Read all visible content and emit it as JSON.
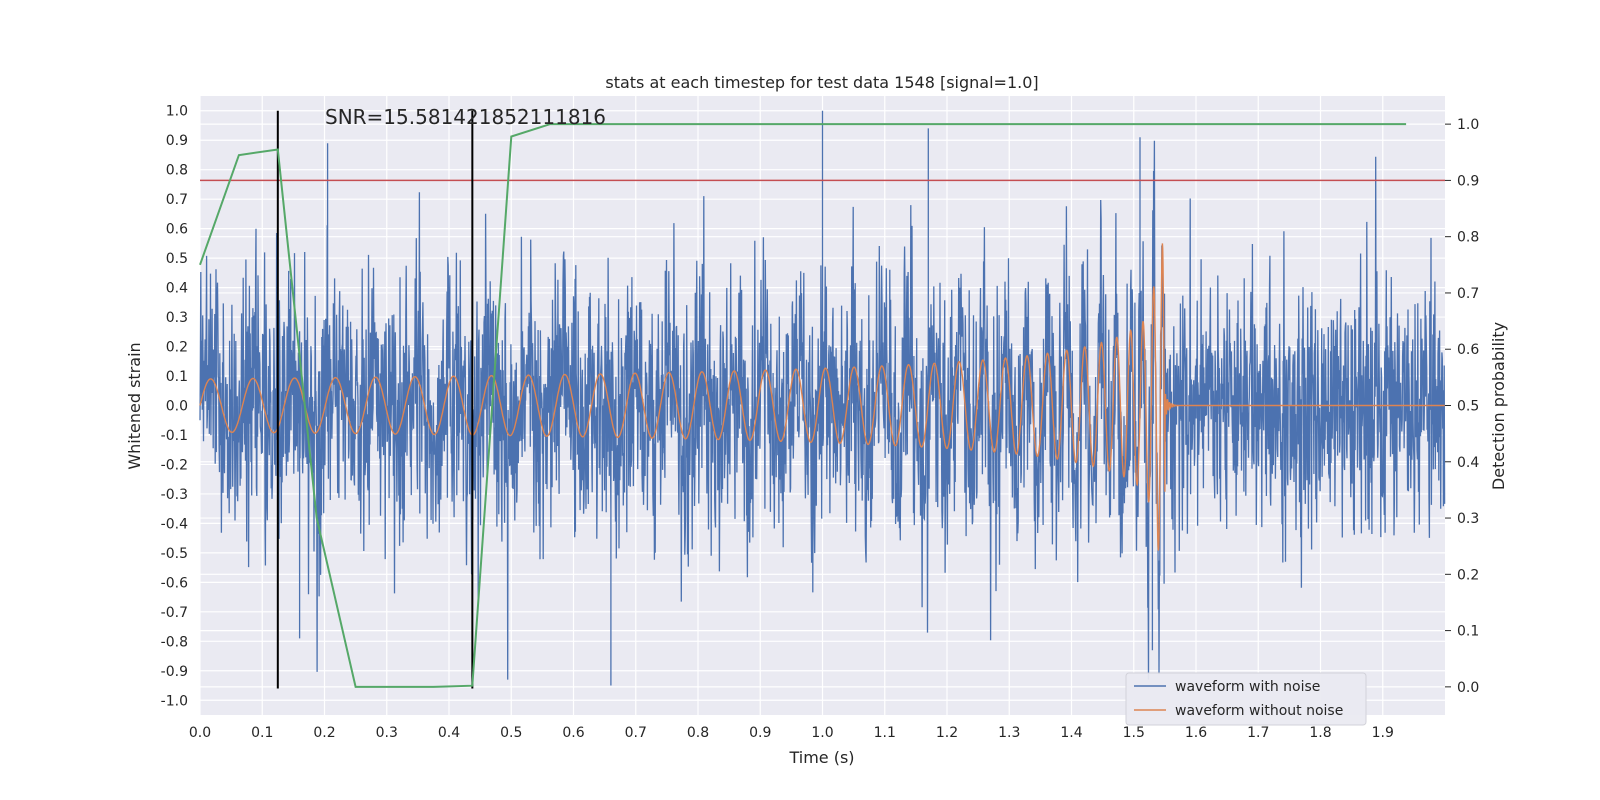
{
  "chart_data": {
    "type": "line",
    "title": "stats at each timestep for test data 1548 [signal=1.0]",
    "annotation": "SNR=15.581421852111816",
    "xlabel": "Time (s)",
    "ylabel": "Whitened strain",
    "ylabel_right": "Detection probability",
    "xlim": [
      0.0,
      2.0
    ],
    "ylim": [
      -1.05,
      1.05
    ],
    "ylim_right": [
      -0.05,
      1.05
    ],
    "x_ticks": [
      "0.0",
      "0.1",
      "0.2",
      "0.3",
      "0.4",
      "0.5",
      "0.6",
      "0.7",
      "0.8",
      "0.9",
      "1.0",
      "1.1",
      "1.2",
      "1.3",
      "1.4",
      "1.5",
      "1.6",
      "1.7",
      "1.8",
      "1.9"
    ],
    "y_ticks": [
      "1.0",
      "0.9",
      "0.8",
      "0.7",
      "0.6",
      "0.5",
      "0.4",
      "0.3",
      "0.2",
      "0.1",
      "0.0",
      "-0.1",
      "-0.2",
      "-0.3",
      "-0.4",
      "-0.5",
      "-0.6",
      "-0.7",
      "-0.8",
      "-0.9",
      "-1.0"
    ],
    "y_ticks_right": [
      "1.0",
      "0.9",
      "0.8",
      "0.7",
      "0.6",
      "0.5",
      "0.4",
      "0.3",
      "0.2",
      "0.1",
      "0.0"
    ],
    "grid": true,
    "legend_position": "bottom-right",
    "series": [
      {
        "name": "waveform with noise",
        "color": "#4c72b0",
        "description_values": {
          "x_range": [
            0.0,
            2.0
          ],
          "y_min": -0.95,
          "y_max": 1.0,
          "peaks": [
            [
              0.205,
              0.89
            ],
            [
              1.0,
              1.0
            ],
            [
              1.17,
              0.94
            ],
            [
              1.51,
              0.91
            ],
            [
              0.16,
              -0.79
            ],
            [
              0.66,
              -0.95
            ],
            [
              1.53,
              -0.83
            ]
          ]
        }
      },
      {
        "name": "waveform without noise",
        "color": "#dd8452",
        "description_values": {
          "x_range": [
            0.0,
            2.0
          ],
          "chirp_end": 1.55,
          "amplitude_start": 0.09,
          "amplitude_peak": [
            0.55,
            -0.43
          ]
        }
      }
    ],
    "detection_probability": {
      "color": "#55a868",
      "x": [
        0.0,
        0.0625,
        0.125,
        0.1875,
        0.25,
        0.3125,
        0.375,
        0.4375,
        0.5,
        0.5625,
        0.625,
        0.6875,
        0.75,
        0.8125,
        0.875,
        0.9375,
        1.0,
        1.0625,
        1.125,
        1.1875,
        1.25,
        1.3125,
        1.375,
        1.4375,
        1.5,
        1.5625,
        1.625,
        1.6875,
        1.75,
        1.8125,
        1.875,
        1.9375
      ],
      "y": [
        0.75,
        0.945,
        0.955,
        0.3,
        0.0,
        0.0,
        0.0,
        0.002,
        0.978,
        1.0,
        1.0,
        1.0,
        1.0,
        1.0,
        1.0,
        1.0,
        1.0,
        1.0,
        1.0,
        1.0,
        1.0,
        1.0,
        1.0,
        1.0,
        1.0,
        1.0,
        1.0,
        1.0,
        1.0,
        1.0,
        1.0,
        1.0
      ]
    },
    "threshold": {
      "value_right": 0.9,
      "color": "#c44e52"
    },
    "vertical_markers": [
      {
        "x": 0.125,
        "color": "#000000"
      },
      {
        "x": 0.4375,
        "color": "#000000"
      }
    ]
  }
}
